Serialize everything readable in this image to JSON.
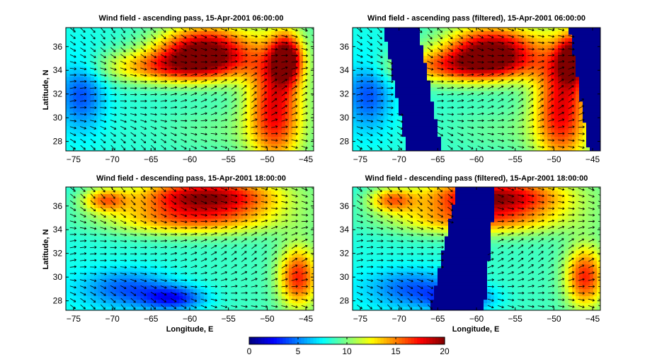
{
  "chart_data": [
    {
      "type": "heatmap",
      "title": "Wind field - ascending pass, 15-Apr-2001 06:00:00",
      "xlabel": "",
      "ylabel": "Latitude, N",
      "xlim": [
        -76,
        -44
      ],
      "ylim": [
        27.2,
        37.6
      ],
      "xticks": [
        -75,
        -70,
        -65,
        -60,
        -55,
        -50,
        -45
      ],
      "yticks": [
        28,
        30,
        32,
        34,
        36
      ],
      "blobs": [
        {
          "x": -58,
          "y": 35.8,
          "v": 19,
          "sx": 6,
          "sy": 2
        },
        {
          "x": -62,
          "y": 34.3,
          "v": 15,
          "sx": 9,
          "sy": 1.4
        },
        {
          "x": -49,
          "y": 31,
          "v": 17,
          "sx": 3.5,
          "sy": 5
        },
        {
          "x": -47.5,
          "y": 35,
          "v": 18,
          "sx": 2,
          "sy": 2
        },
        {
          "x": -74,
          "y": 32,
          "v": 4,
          "sx": 3,
          "sy": 3
        },
        {
          "x": -56,
          "y": 29,
          "v": 9,
          "sx": 8,
          "sy": 2
        }
      ],
      "masks": []
    },
    {
      "type": "heatmap",
      "title": "Wind field - ascending pass (filtered), 15-Apr-2001 06:00:00",
      "xlabel": "",
      "ylabel": "",
      "xlim": [
        -76,
        -44
      ],
      "ylim": [
        27.2,
        37.6
      ],
      "xticks": [
        -75,
        -70,
        -65,
        -60,
        -55,
        -50,
        -45
      ],
      "yticks": [
        28,
        30,
        32,
        34,
        36
      ],
      "blobs": [
        {
          "x": -58,
          "y": 35.8,
          "v": 19,
          "sx": 6,
          "sy": 2
        },
        {
          "x": -62,
          "y": 34.3,
          "v": 15,
          "sx": 9,
          "sy": 1.4
        },
        {
          "x": -49,
          "y": 31,
          "v": 17,
          "sx": 3.5,
          "sy": 5
        },
        {
          "x": -47.5,
          "y": 35,
          "v": 18,
          "sx": 2,
          "sy": 2
        },
        {
          "x": -74,
          "y": 32,
          "v": 4,
          "sx": 3,
          "sy": 3
        },
        {
          "x": -56,
          "y": 29,
          "v": 9,
          "sx": 8,
          "sy": 2
        }
      ],
      "masks": [
        {
          "x_bottom": [
            -69,
            -64.5
          ],
          "x_top": [
            -72,
            -67.5
          ]
        },
        {
          "x_bottom": [
            -45.5,
            -44
          ],
          "x_top": [
            -48,
            -44
          ]
        }
      ]
    },
    {
      "type": "heatmap",
      "title": "Wind field - descending pass, 15-Apr-2001 18:00:00",
      "xlabel": "Longitude, E",
      "ylabel": "Latitude, N",
      "xlim": [
        -76,
        -44
      ],
      "ylim": [
        27.2,
        37.6
      ],
      "xticks": [
        -75,
        -70,
        -65,
        -60,
        -55,
        -50,
        -45
      ],
      "yticks": [
        28,
        30,
        32,
        34,
        36
      ],
      "blobs": [
        {
          "x": -58,
          "y": 36.8,
          "v": 19,
          "sx": 9,
          "sy": 1.5
        },
        {
          "x": -60,
          "y": 34.8,
          "v": 14,
          "sx": 11,
          "sy": 1.3
        },
        {
          "x": -68,
          "y": 29,
          "v": 4,
          "sx": 6,
          "sy": 1.6
        },
        {
          "x": -62,
          "y": 28.2,
          "v": 3,
          "sx": 4,
          "sy": 1
        },
        {
          "x": -46,
          "y": 30,
          "v": 16,
          "sx": 2.5,
          "sy": 2.5
        },
        {
          "x": -71,
          "y": 36.5,
          "v": 14,
          "sx": 3,
          "sy": 1
        }
      ],
      "masks": []
    },
    {
      "type": "heatmap",
      "title": "Wind field - descending pass (filtered), 15-Apr-2001 18:00:00",
      "xlabel": "Longitude, E",
      "ylabel": "",
      "xlim": [
        -76,
        -44
      ],
      "ylim": [
        27.2,
        37.6
      ],
      "xticks": [
        -75,
        -70,
        -65,
        -60,
        -55,
        -50,
        -45
      ],
      "yticks": [
        28,
        30,
        32,
        34,
        36
      ],
      "blobs": [
        {
          "x": -58,
          "y": 36.8,
          "v": 19,
          "sx": 9,
          "sy": 1.5
        },
        {
          "x": -60,
          "y": 34.8,
          "v": 14,
          "sx": 11,
          "sy": 1.3
        },
        {
          "x": -68,
          "y": 29,
          "v": 4,
          "sx": 6,
          "sy": 1.6
        },
        {
          "x": -62,
          "y": 28.2,
          "v": 3,
          "sx": 4,
          "sy": 1
        },
        {
          "x": -46,
          "y": 30,
          "v": 16,
          "sx": 2.5,
          "sy": 2.5
        },
        {
          "x": -71,
          "y": 36.5,
          "v": 14,
          "sx": 3,
          "sy": 1
        }
      ],
      "masks": [
        {
          "x_bottom": [
            -66,
            -59
          ],
          "x_top": [
            -62.5,
            -57.5
          ]
        }
      ]
    }
  ],
  "colorbar": {
    "min": 0,
    "max": 20,
    "ticks": [
      0,
      5,
      10,
      15,
      20
    ],
    "colormap": "jet"
  },
  "colors": {
    "land_mask": "#00008f",
    "arrow": "#000000"
  }
}
